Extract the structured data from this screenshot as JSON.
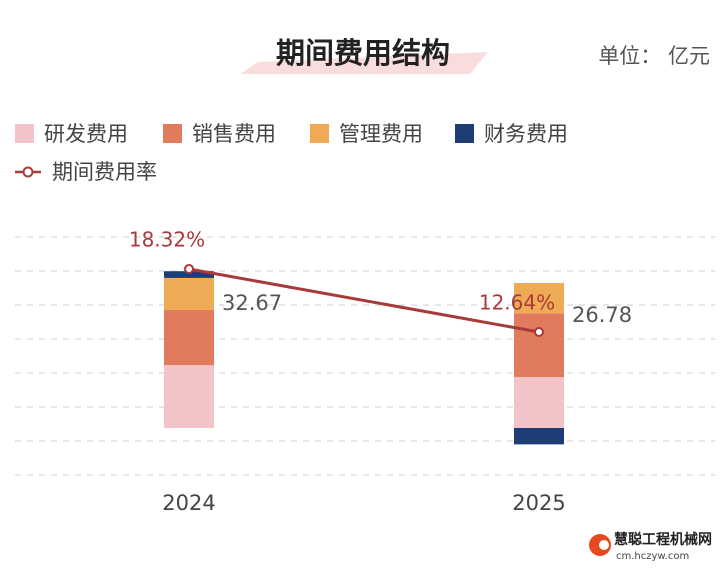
{
  "chart_data": {
    "type": "bar",
    "title": "期间费用结构",
    "unit": "单位： 亿元",
    "categories": [
      "2024",
      "2025"
    ],
    "series": [
      {
        "name": "研发费用",
        "color": "#f2c4c8",
        "values": [
          13.1,
          10.6
        ]
      },
      {
        "name": "销售费用",
        "color": "#e07b5e",
        "values": [
          11.5,
          13.3
        ]
      },
      {
        "name": "管理费用",
        "color": "#eeaa55",
        "values": [
          6.67,
          6.3
        ]
      },
      {
        "name": "财务费用",
        "color": "#1e3d74",
        "values": [
          1.4,
          -3.42
        ]
      },
      {
        "name": "期间费用率",
        "type": "line",
        "axis": "y2",
        "color": "#a83a3a",
        "values": [
          18.32,
          12.64
        ],
        "value_labels": [
          "18.32%",
          "12.64%"
        ]
      }
    ],
    "totals": [
      32.67,
      26.78
    ],
    "ylim": [
      -9.8,
      39.8
    ],
    "y2lim": [
      -0.24,
      21.2
    ],
    "grid": true,
    "watermark": {
      "name": "慧聪工程机械网",
      "url": "cm.hczyw.com"
    }
  }
}
